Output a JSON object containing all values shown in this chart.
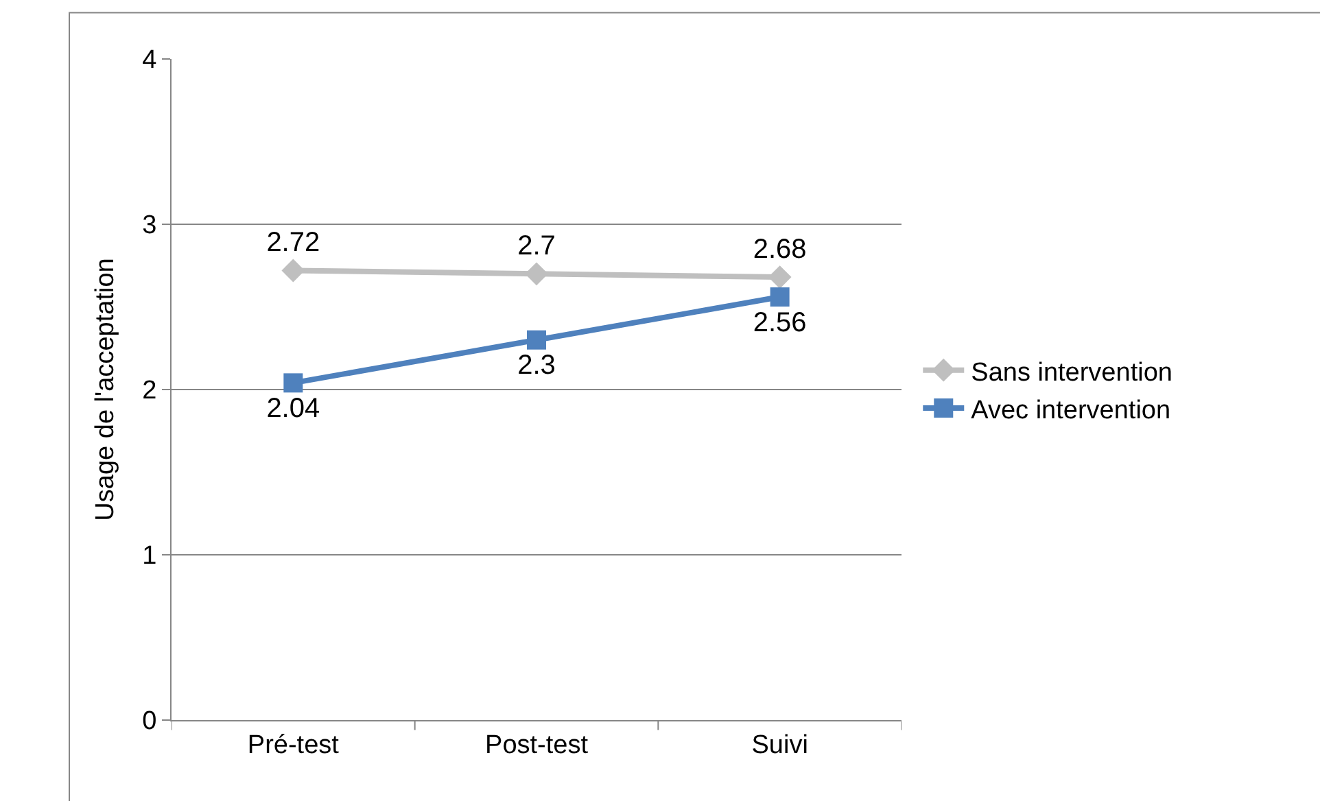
{
  "chart_data": {
    "type": "line",
    "ylabel": "Usage de l'acceptation",
    "categories": [
      "Pré-test",
      "Post-test",
      "Suivi"
    ],
    "series": [
      {
        "name": "Sans intervention",
        "color": "#bfbfbf",
        "marker": "diamond",
        "values": [
          2.72,
          2.7,
          2.68
        ]
      },
      {
        "name": "Avec intervention",
        "color": "#4f81bd",
        "marker": "square",
        "values": [
          2.04,
          2.3,
          2.56
        ]
      }
    ],
    "ylim": [
      0,
      4
    ],
    "yticks": [
      0,
      1,
      2,
      3,
      4
    ],
    "grid": "y",
    "legend": "right",
    "data_labels": true,
    "line_style": "solid"
  }
}
